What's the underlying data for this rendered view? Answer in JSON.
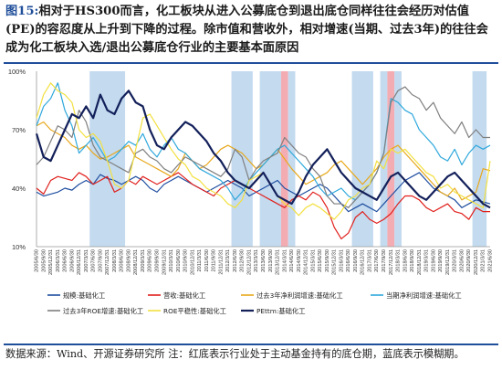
{
  "figure": {
    "label": "图15:",
    "title": "相对于HS300而言，化工板块从进入公募底仓到退出底仓同样往往会经历对估值(PE)的容忍度从上升到下降的过程。除市值和营收外，相对增速(当期、过去3年)的往往会成为化工板块入选/退出公募底仓行业的主要基本面原因",
    "source": "数据来源：Wind、开源证券研究所   注：红底表示行业处于主动基金持有的底仓期，蓝底表示模糊期。"
  },
  "chart_data": {
    "type": "line",
    "ylim": [
      10,
      100
    ],
    "yticks": [
      10,
      40,
      70,
      100
    ],
    "ytick_labels": [
      "10%",
      "40%",
      "70%",
      "100%"
    ],
    "grid": false,
    "legend_position": "bottom",
    "x": [
      "2005/6/30",
      "2005/9/30",
      "2005/12/31",
      "2006/3/31",
      "2006/6/30",
      "2006/9/30",
      "2006/12/31",
      "2007/3/31",
      "2007/6/30",
      "2007/9/30",
      "2007/12/31",
      "2008/3/31",
      "2008/6/30",
      "2008/9/30",
      "2008/12/31",
      "2009/3/31",
      "2009/6/30",
      "2009/9/30",
      "2009/12/31",
      "2010/3/31",
      "2010/6/30",
      "2010/9/30",
      "2010/12/31",
      "2011/3/31",
      "2011/6/30",
      "2011/9/30",
      "2011/12/31",
      "2012/3/31",
      "2012/6/30",
      "2012/9/30",
      "2012/12/31",
      "2013/3/31",
      "2013/6/30",
      "2013/9/30",
      "2013/12/31",
      "2014/3/31",
      "2014/6/30",
      "2014/9/30",
      "2014/12/31",
      "2015/3/31",
      "2015/6/30",
      "2015/9/30",
      "2015/12/31",
      "2016/3/31",
      "2016/6/30",
      "2016/9/30",
      "2016/12/31",
      "2017/3/31",
      "2017/6/30",
      "2017/9/30",
      "2017/12/31",
      "2018/3/31",
      "2018/6/30",
      "2018/9/30",
      "2018/12/31",
      "2019/3/31",
      "2019/6/30",
      "2019/9/30",
      "2019/12/31",
      "2020/3/31",
      "2020/6/30",
      "2020/9/30",
      "2020/12/31",
      "2021/3/31",
      "2021/6/30"
    ],
    "shaded_periods": [
      {
        "kind": "blue",
        "start": 8,
        "end": 12
      },
      {
        "kind": "blue",
        "start": 28,
        "end": 30
      },
      {
        "kind": "blue",
        "start": 32,
        "end": 34
      },
      {
        "kind": "red",
        "start": 35,
        "end": 35
      },
      {
        "kind": "blue",
        "start": 36,
        "end": 36
      },
      {
        "kind": "blue",
        "start": 45,
        "end": 47
      },
      {
        "kind": "blue",
        "start": 49,
        "end": 49
      },
      {
        "kind": "red",
        "start": 50,
        "end": 50
      },
      {
        "kind": "blue",
        "start": 51,
        "end": 51
      },
      {
        "kind": "blue",
        "start": 62,
        "end": 63
      }
    ],
    "series": [
      {
        "name": "规模:基础化工",
        "color": "#1f4ea0",
        "width": 1.2,
        "values": [
          38,
          36,
          37,
          38,
          40,
          39,
          42,
          44,
          42,
          47,
          45,
          44,
          42,
          44,
          46,
          44,
          40,
          38,
          42,
          44,
          46,
          44,
          42,
          40,
          38,
          40,
          42,
          44,
          42,
          40,
          36,
          38,
          40,
          42,
          44,
          40,
          38,
          36,
          38,
          40,
          42,
          40,
          36,
          32,
          28,
          30,
          32,
          30,
          28,
          32,
          36,
          40,
          44,
          46,
          48,
          44,
          40,
          38,
          36,
          34,
          30,
          32,
          34,
          33,
          32
        ]
      },
      {
        "name": "营收:基础化工",
        "color": "#e0201c",
        "width": 1.2,
        "values": [
          40,
          37,
          44,
          46,
          45,
          44,
          48,
          46,
          42,
          44,
          46,
          38,
          40,
          44,
          42,
          46,
          44,
          42,
          44,
          46,
          48,
          45,
          42,
          40,
          38,
          36,
          40,
          42,
          44,
          42,
          40,
          38,
          36,
          34,
          32,
          30,
          34,
          36,
          34,
          38,
          36,
          30,
          20,
          14,
          17,
          25,
          28,
          24,
          22,
          24,
          27,
          32,
          36,
          36,
          34,
          30,
          28,
          30,
          32,
          28,
          27,
          24,
          30,
          28,
          28
        ]
      },
      {
        "name": "过去3年净利润增速:基础化工",
        "color": "#e8a81c",
        "width": 1.2,
        "values": [
          72,
          74,
          70,
          68,
          66,
          62,
          60,
          62,
          58,
          55,
          56,
          58,
          60,
          62,
          56,
          54,
          52,
          50,
          48,
          46,
          50,
          58,
          54,
          50,
          52,
          56,
          60,
          62,
          60,
          58,
          54,
          50,
          52,
          56,
          60,
          55,
          50,
          46,
          42,
          44,
          46,
          48,
          52,
          54,
          50,
          46,
          42,
          46,
          50,
          56,
          60,
          62,
          58,
          54,
          50,
          46,
          42,
          38,
          36,
          40,
          34,
          36,
          38,
          50,
          49
        ]
      },
      {
        "name": "当期净利润增速:基础化工",
        "color": "#2fa8dc",
        "width": 1.2,
        "values": [
          72,
          82,
          86,
          94,
          80,
          72,
          58,
          62,
          66,
          60,
          54,
          56,
          60,
          64,
          62,
          68,
          60,
          56,
          62,
          66,
          60,
          58,
          54,
          50,
          48,
          46,
          44,
          40,
          34,
          38,
          44,
          48,
          52,
          56,
          60,
          62,
          58,
          54,
          50,
          46,
          40,
          36,
          38,
          40,
          36,
          34,
          38,
          42,
          48,
          58,
          86,
          84,
          80,
          78,
          70,
          66,
          62,
          56,
          54,
          60,
          52,
          58,
          62,
          60,
          62
        ]
      },
      {
        "name": "过去3年ROE增速:基础化工",
        "color": "#7f7f7f",
        "width": 1.2,
        "values": [
          52,
          56,
          64,
          72,
          70,
          66,
          80,
          74,
          62,
          56,
          54,
          52,
          50,
          48,
          58,
          60,
          56,
          54,
          50,
          48,
          52,
          56,
          54,
          52,
          50,
          48,
          46,
          50,
          60,
          56,
          44,
          50,
          54,
          56,
          58,
          66,
          62,
          58,
          56,
          50,
          46,
          36,
          32,
          32,
          30,
          34,
          38,
          42,
          48,
          58,
          84,
          90,
          92,
          88,
          86,
          80,
          84,
          76,
          72,
          68,
          74,
          66,
          70,
          66,
          66
        ]
      },
      {
        "name": "ROE平稳性:基础化工",
        "color": "#f2e040",
        "width": 1.2,
        "values": [
          76,
          88,
          94,
          90,
          88,
          84,
          70,
          66,
          68,
          64,
          54,
          42,
          40,
          44,
          60,
          76,
          78,
          72,
          66,
          60,
          55,
          52,
          46,
          44,
          40,
          38,
          36,
          32,
          30,
          34,
          44,
          46,
          48,
          42,
          36,
          32,
          30,
          26,
          30,
          32,
          30,
          27,
          24,
          28,
          34,
          36,
          40,
          42,
          54,
          50,
          60,
          58,
          60,
          56,
          52,
          48,
          46,
          40,
          42,
          38,
          36,
          34,
          32,
          30,
          54
        ]
      },
      {
        "name": "PEttm:基础化工",
        "color": "#13205a",
        "width": 2.2,
        "values": [
          68,
          56,
          54,
          62,
          70,
          78,
          76,
          82,
          76,
          88,
          80,
          78,
          86,
          90,
          84,
          82,
          70,
          62,
          60,
          66,
          70,
          74,
          72,
          68,
          64,
          58,
          54,
          48,
          44,
          42,
          40,
          44,
          48,
          42,
          36,
          34,
          32,
          38,
          46,
          52,
          56,
          60,
          54,
          48,
          44,
          40,
          38,
          36,
          34,
          40,
          46,
          48,
          44,
          40,
          36,
          34,
          38,
          42,
          46,
          48,
          44,
          40,
          36,
          32,
          30
        ]
      }
    ]
  }
}
